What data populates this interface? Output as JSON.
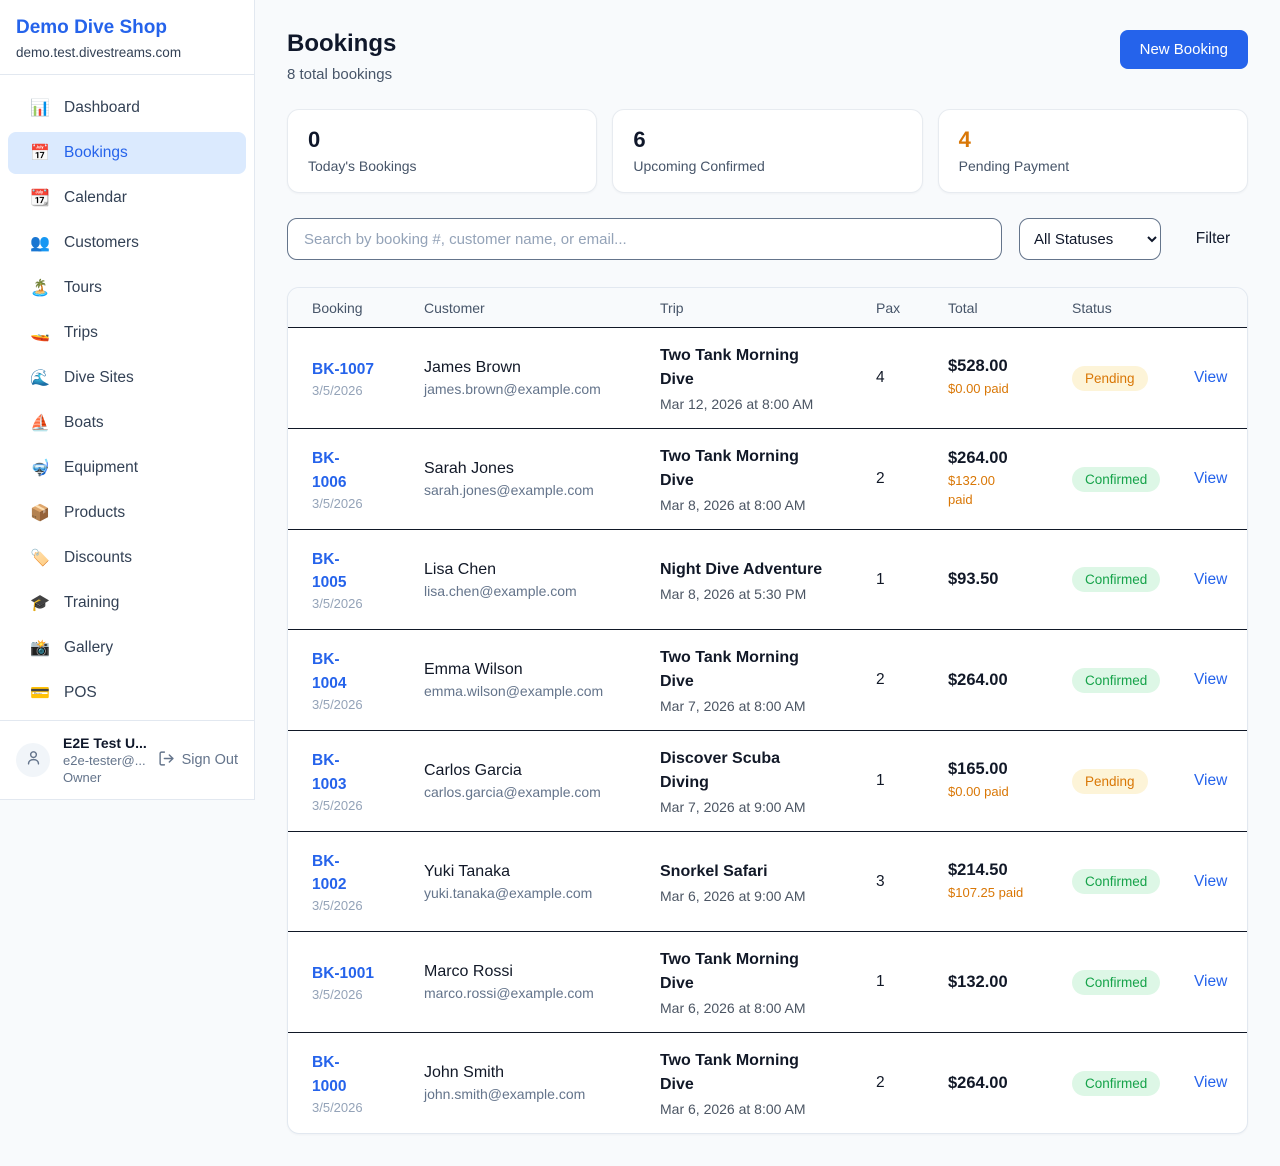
{
  "brand": {
    "name": "Demo Dive Shop",
    "domain": "demo.test.divestreams.com"
  },
  "sidebar": {
    "items": [
      {
        "icon": "📊",
        "icon_name": "bar-chart-icon",
        "label": "Dashboard",
        "active": false
      },
      {
        "icon": "📅",
        "icon_name": "calendar-date-icon",
        "label": "Bookings",
        "active": true
      },
      {
        "icon": "📆",
        "icon_name": "tear-off-calendar-icon",
        "label": "Calendar",
        "active": false
      },
      {
        "icon": "👥",
        "icon_name": "people-icon",
        "label": "Customers",
        "active": false
      },
      {
        "icon": "🏝️",
        "icon_name": "island-icon",
        "label": "Tours",
        "active": false
      },
      {
        "icon": "🚤",
        "icon_name": "speedboat-icon",
        "label": "Trips",
        "active": false
      },
      {
        "icon": "🌊",
        "icon_name": "wave-icon",
        "label": "Dive Sites",
        "active": false
      },
      {
        "icon": "⛵",
        "icon_name": "sailboat-icon",
        "label": "Boats",
        "active": false
      },
      {
        "icon": "🤿",
        "icon_name": "diving-mask-icon",
        "label": "Equipment",
        "active": false
      },
      {
        "icon": "📦",
        "icon_name": "package-icon",
        "label": "Products",
        "active": false
      },
      {
        "icon": "🏷️",
        "icon_name": "label-tag-icon",
        "label": "Discounts",
        "active": false
      },
      {
        "icon": "🎓",
        "icon_name": "graduation-cap-icon",
        "label": "Training",
        "active": false
      },
      {
        "icon": "📸",
        "icon_name": "camera-icon",
        "label": "Gallery",
        "active": false
      },
      {
        "icon": "💳",
        "icon_name": "credit-card-icon",
        "label": "POS",
        "active": false
      }
    ],
    "user": {
      "name": "E2E Test U...",
      "email": "e2e-tester@...",
      "role": "Owner",
      "signout_label": "Sign Out"
    }
  },
  "header": {
    "title": "Bookings",
    "subtitle": "8 total bookings",
    "new_booking_label": "New Booking"
  },
  "stats": [
    {
      "value": "0",
      "label": "Today's Bookings",
      "accent": false
    },
    {
      "value": "6",
      "label": "Upcoming Confirmed",
      "accent": false
    },
    {
      "value": "4",
      "label": "Pending Payment",
      "accent": true
    }
  ],
  "filters": {
    "search_placeholder": "Search by booking #, customer name, or email...",
    "status_value": "All Statuses",
    "filter_label": "Filter"
  },
  "table": {
    "columns": [
      "Booking",
      "Customer",
      "Trip",
      "Pax",
      "Total",
      "Status"
    ],
    "view_label": "View",
    "rows": [
      {
        "number": "BK-1007",
        "date": "3/5/2026",
        "customer": "James Brown",
        "email": "james.brown@example.com",
        "trip": "Two Tank Morning\nDive",
        "trip_time": "Mar 12, 2026 at 8:00 AM",
        "pax": "4",
        "total": "$528.00",
        "paid": "$0.00 paid",
        "status": "Pending"
      },
      {
        "number": "BK-\n1006",
        "date": "3/5/2026",
        "customer": "Sarah Jones",
        "email": "sarah.jones@example.com",
        "trip": "Two Tank Morning\nDive",
        "trip_time": "Mar 8, 2026 at 8:00 AM",
        "pax": "2",
        "total": "$264.00",
        "paid": "$132.00\npaid",
        "status": "Confirmed"
      },
      {
        "number": "BK-\n1005",
        "date": "3/5/2026",
        "customer": "Lisa Chen",
        "email": "lisa.chen@example.com",
        "trip": "Night Dive Adventure",
        "trip_time": "Mar 8, 2026 at 5:30 PM",
        "pax": "1",
        "total": "$93.50",
        "paid": "",
        "status": "Confirmed"
      },
      {
        "number": "BK-\n1004",
        "date": "3/5/2026",
        "customer": "Emma Wilson",
        "email": "emma.wilson@example.com",
        "trip": "Two Tank Morning\nDive",
        "trip_time": "Mar 7, 2026 at 8:00 AM",
        "pax": "2",
        "total": "$264.00",
        "paid": "",
        "status": "Confirmed"
      },
      {
        "number": "BK-\n1003",
        "date": "3/5/2026",
        "customer": "Carlos Garcia",
        "email": "carlos.garcia@example.com",
        "trip": "Discover Scuba\nDiving",
        "trip_time": "Mar 7, 2026 at 9:00 AM",
        "pax": "1",
        "total": "$165.00",
        "paid": "$0.00 paid",
        "status": "Pending"
      },
      {
        "number": "BK-\n1002",
        "date": "3/5/2026",
        "customer": "Yuki Tanaka",
        "email": "yuki.tanaka@example.com",
        "trip": "Snorkel Safari",
        "trip_time": "Mar 6, 2026 at 9:00 AM",
        "pax": "3",
        "total": "$214.50",
        "paid": "$107.25 paid",
        "status": "Confirmed"
      },
      {
        "number": "BK-1001",
        "date": "3/5/2026",
        "customer": "Marco Rossi",
        "email": "marco.rossi@example.com",
        "trip": "Two Tank Morning\nDive",
        "trip_time": "Mar 6, 2026 at 8:00 AM",
        "pax": "1",
        "total": "$132.00",
        "paid": "",
        "status": "Confirmed"
      },
      {
        "number": "BK-\n1000",
        "date": "3/5/2026",
        "customer": "John Smith",
        "email": "john.smith@example.com",
        "trip": "Two Tank Morning\nDive",
        "trip_time": "Mar 6, 2026 at 8:00 AM",
        "pax": "2",
        "total": "$264.00",
        "paid": "",
        "status": "Confirmed"
      }
    ]
  },
  "colors": {
    "accent_blue": "#2563eb",
    "accent_orange": "#d97706",
    "confirmed_green": "#16a34a",
    "pending_bg": "#fdf4d8",
    "confirmed_bg": "#ddf7e6",
    "page_bg": "#f8fafc"
  }
}
